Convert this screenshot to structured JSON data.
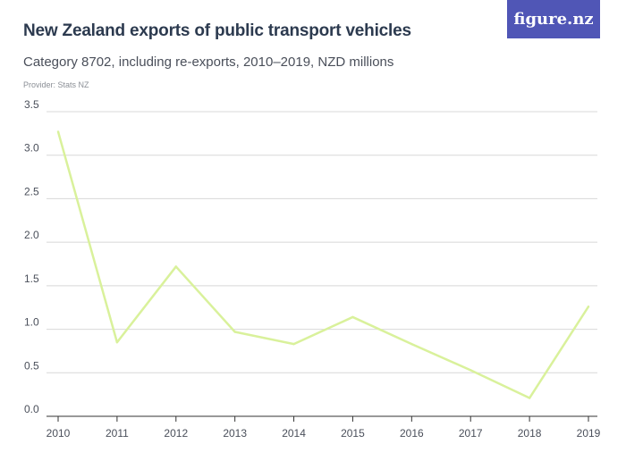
{
  "header": {
    "title": "New Zealand exports of public transport vehicles",
    "subtitle": "Category 8702, including re-exports, 2010–2019, NZD millions",
    "provider": "Provider: Stats NZ",
    "logo": "figure.nz"
  },
  "colors": {
    "line": "#d9f19b",
    "grid": "#d8d8d8",
    "text": "#4a4f5a",
    "logo_bg": "#5056b6"
  },
  "chart_data": {
    "type": "line",
    "title": "New Zealand exports of public transport vehicles",
    "xlabel": "",
    "ylabel": "",
    "ylim": [
      0,
      3.5
    ],
    "yticks": [
      "0.0",
      "0.5",
      "1.0",
      "1.5",
      "2.0",
      "2.5",
      "3.0",
      "3.5"
    ],
    "categories": [
      "2010",
      "2011",
      "2012",
      "2013",
      "2014",
      "2015",
      "2016",
      "2017",
      "2018",
      "2019"
    ],
    "series": [
      {
        "values": [
          3.27,
          0.85,
          1.72,
          0.97,
          0.83,
          1.14,
          0.83,
          0.53,
          0.21,
          1.26
        ]
      }
    ],
    "grid": true,
    "legend": "none"
  }
}
